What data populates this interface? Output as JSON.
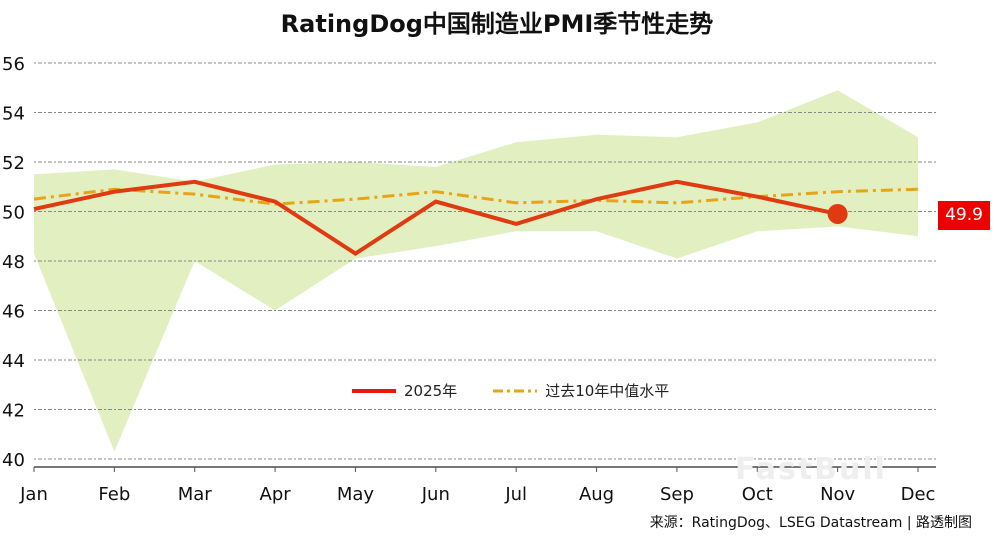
{
  "chart_data": {
    "type": "line",
    "title": "RatingDog中国制造业PMI季节性走势",
    "categories": [
      "Jan",
      "Feb",
      "Mar",
      "Apr",
      "May",
      "Jun",
      "Jul",
      "Aug",
      "Sep",
      "Oct",
      "Nov",
      "Dec"
    ],
    "ylim": [
      40,
      56
    ],
    "yticks": [
      40,
      42,
      44,
      46,
      48,
      50,
      52,
      54,
      56
    ],
    "grid": true,
    "legend_position": "bottom-center",
    "series": [
      {
        "name": "2025年",
        "color": "#e03a10",
        "style": "solid",
        "values": [
          50.1,
          50.8,
          51.2,
          50.4,
          48.3,
          50.4,
          49.5,
          50.5,
          51.2,
          50.6,
          49.9,
          null
        ]
      },
      {
        "name": "过去10年中值水平",
        "color": "#e8a317",
        "style": "dash-dot",
        "values": [
          50.5,
          50.9,
          50.7,
          50.3,
          50.5,
          50.8,
          50.35,
          50.45,
          50.35,
          50.6,
          50.8,
          50.9
        ]
      }
    ],
    "range_band": {
      "color": "#e2efc0",
      "upper": [
        51.5,
        51.7,
        51.2,
        51.9,
        52.0,
        51.8,
        52.8,
        53.1,
        53.0,
        53.6,
        54.9,
        53.0
      ],
      "lower": [
        48.3,
        40.3,
        48.0,
        46.0,
        48.1,
        48.6,
        49.2,
        49.2,
        48.1,
        49.2,
        49.4,
        49.0
      ]
    },
    "end_label": "49.9",
    "end_label_color": "#ee0000"
  },
  "source": "来源：RatingDog、LSEG Datastream | 路透制图",
  "watermark": "FastBull"
}
